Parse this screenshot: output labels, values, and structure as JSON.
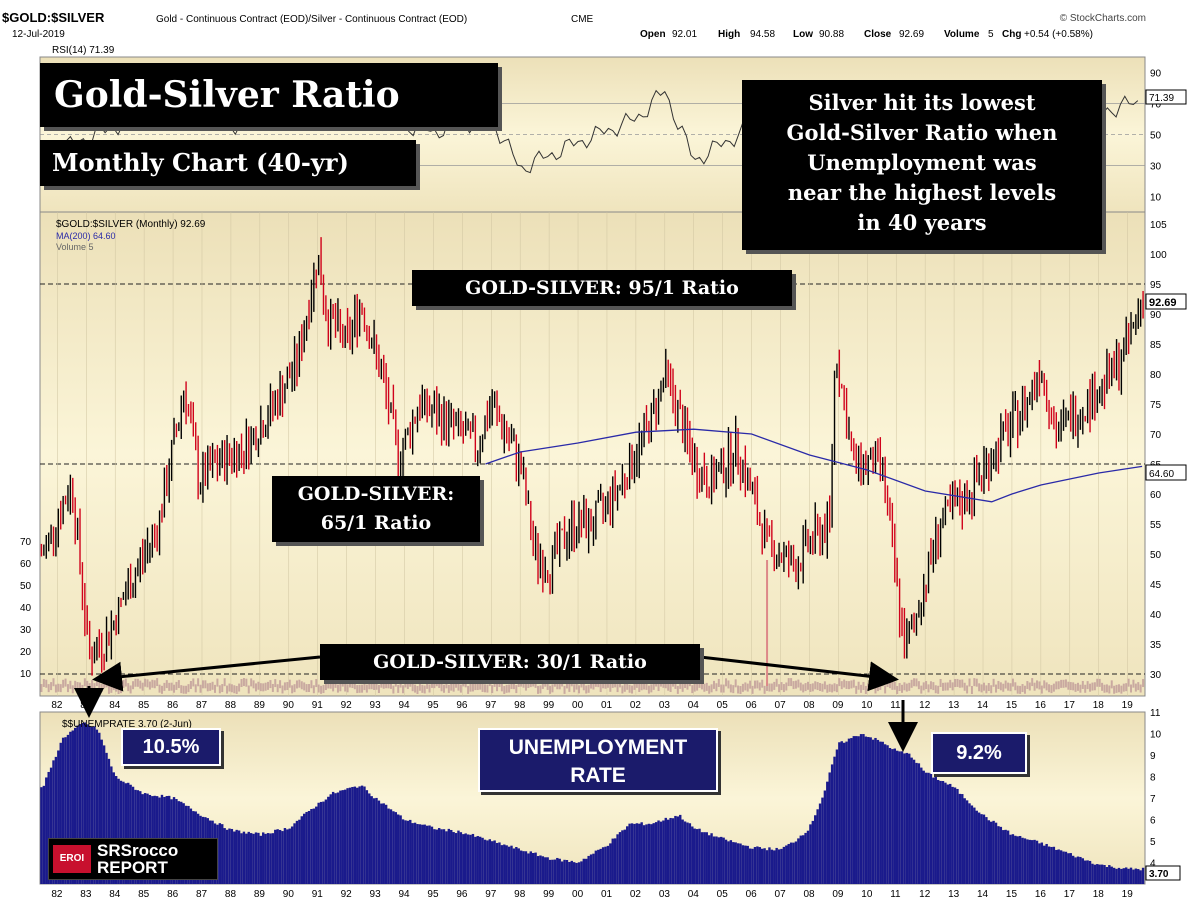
{
  "header": {
    "symbol": "$GOLD:$SILVER",
    "description": "Gold - Continuous Contract (EOD)/Silver - Continuous Contract (EOD)",
    "exchange": "CME",
    "source": "© StockCharts.com",
    "date": "12-Jul-2019",
    "ohlc": {
      "open_label": "Open",
      "open": "92.01",
      "high_label": "High",
      "high": "94.58",
      "low_label": "Low",
      "low": "90.88",
      "close_label": "Close",
      "close": "92.69",
      "volume_label": "Volume",
      "volume": "5",
      "chg_label": "Chg",
      "chg": "+0.54 (+0.58%)"
    }
  },
  "annotations": {
    "title": "Gold-Silver Ratio",
    "subtitle": "Monthly Chart (40-yr)",
    "note_lines": [
      "Silver hit its lowest",
      "Gold-Silver Ratio when",
      "Unemployment was",
      "near the highest levels",
      "in 40 years"
    ],
    "ratio95": "GOLD-SILVER: 95/1 Ratio",
    "ratio65_line1": "GOLD-SILVER:",
    "ratio65_line2": "65/1 Ratio",
    "ratio30": "GOLD-SILVER: 30/1 Ratio",
    "unemp_peak1": "10.5%",
    "unemp_peak2": "9.2%",
    "unemp_label_line1": "UNEMPLOYMENT",
    "unemp_label_line2": "RATE"
  },
  "logo": {
    "badge": "EROI",
    "line1": "SRSrocco",
    "line2": "REPORT"
  },
  "colors": {
    "background": "#f6efc4",
    "up": "#000000",
    "down": "#d0021b",
    "ma": "#2a2aa8",
    "unemployment": "#1a1a8c",
    "callout": "#000000",
    "callout_blue": "#1b1b6b"
  },
  "chart_data": [
    {
      "type": "line",
      "panel": "RSI",
      "title": "RSI(14) 71.39",
      "last_value": "71.39",
      "ylim": [
        0,
        100
      ],
      "y_ticks": [
        "90",
        "70",
        "50",
        "30",
        "10"
      ],
      "x": [
        1982,
        1984,
        1986,
        1988,
        1990,
        1991,
        1993,
        1995,
        1997,
        1998,
        2000,
        2002,
        2003,
        2004,
        2006,
        2008,
        2008.8,
        2010,
        2011.3,
        2013,
        2015,
        2017,
        2019.5
      ],
      "values": [
        40,
        55,
        75,
        55,
        70,
        85,
        60,
        52,
        60,
        28,
        45,
        60,
        78,
        33,
        55,
        40,
        80,
        60,
        35,
        55,
        65,
        60,
        71.39
      ]
    },
    {
      "type": "bar",
      "panel": "price",
      "title": "$GOLD:$SILVER (Monthly) 92.69",
      "legend": [
        "$GOLD:$SILVER (Monthly) 92.69",
        "MA(200) 64.60",
        "Volume 5"
      ],
      "last_value": "92.69",
      "ma_last": "64.60",
      "ylim": [
        28,
        107
      ],
      "y_ticks_right": [
        "105",
        "100",
        "95",
        "90",
        "85",
        "80",
        "75",
        "70",
        "65",
        "60",
        "55",
        "50",
        "45",
        "40",
        "35",
        "30"
      ],
      "volume_ticks_left": [
        "70",
        "60",
        "50",
        "40",
        "30",
        "20",
        "10"
      ],
      "reference_lines": [
        95,
        65,
        30
      ],
      "x_ticks": [
        "82",
        "83",
        "84",
        "85",
        "86",
        "87",
        "88",
        "89",
        "90",
        "91",
        "92",
        "93",
        "94",
        "95",
        "96",
        "97",
        "98",
        "99",
        "00",
        "01",
        "02",
        "03",
        "04",
        "05",
        "06",
        "07",
        "08",
        "09",
        "10",
        "11",
        "12",
        "13",
        "14",
        "15",
        "16",
        "17",
        "18",
        "19"
      ],
      "x": [
        1981.5,
        1982.5,
        1983.1,
        1983.7,
        1984.5,
        1985.5,
        1986.4,
        1986.9,
        1987.5,
        1988.5,
        1989.5,
        1990.3,
        1991.0,
        1991.3,
        1992.0,
        1992.5,
        1993.3,
        1993.8,
        1994.5,
        1995.5,
        1996.5,
        1997.0,
        1997.5,
        1998.0,
        1998.5,
        1999.0,
        1999.8,
        2000.5,
        2001.5,
        2002.5,
        2003.0,
        2003.5,
        2004.0,
        2004.6,
        2005.5,
        2006.0,
        2006.5,
        2007.5,
        2008.0,
        2008.7,
        2008.9,
        2009.5,
        2010.5,
        2011.0,
        2011.3,
        2011.7,
        2012.5,
        2013.5,
        2014.5,
        2015.5,
        2016.0,
        2016.5,
        2017.5,
        2018.5,
        2019.0,
        2019.5
      ],
      "values": [
        50,
        62,
        33,
        36,
        45,
        55,
        78,
        62,
        65,
        68,
        75,
        82,
        100,
        90,
        85,
        92,
        78,
        66,
        75,
        72,
        68,
        75,
        70,
        65,
        50,
        48,
        55,
        55,
        62,
        72,
        80,
        73,
        65,
        62,
        68,
        60,
        52,
        48,
        52,
        55,
        85,
        65,
        65,
        45,
        34,
        40,
        55,
        60,
        68,
        75,
        82,
        70,
        75,
        80,
        85,
        92.69
      ],
      "ma200": {
        "x": [
          1996.8,
          1998,
          2000,
          2002,
          2004,
          2006,
          2008,
          2010,
          2012,
          2014.3,
          2015,
          2016,
          2017,
          2018,
          2019.5
        ],
        "values": [
          65,
          67,
          68.5,
          70.3,
          70.8,
          70,
          66.5,
          64,
          60.5,
          58.7,
          60,
          61.5,
          62.5,
          63.5,
          64.6
        ]
      }
    },
    {
      "type": "area",
      "panel": "unemployment",
      "title": "$$UNEMPRATE 3.70 (2-Jun)",
      "last_value": "3.70",
      "ylim": [
        3,
        11
      ],
      "y_ticks": [
        "11",
        "10",
        "9",
        "8",
        "7",
        "6",
        "5",
        "4"
      ],
      "x_ticks": [
        "82",
        "83",
        "84",
        "85",
        "86",
        "87",
        "88",
        "89",
        "90",
        "91",
        "92",
        "93",
        "94",
        "95",
        "96",
        "97",
        "98",
        "99",
        "00",
        "01",
        "02",
        "03",
        "04",
        "05",
        "06",
        "07",
        "08",
        "09",
        "10",
        "11",
        "12",
        "13",
        "14",
        "15",
        "16",
        "17",
        "18",
        "19"
      ],
      "x": [
        1981.5,
        1982.2,
        1982.9,
        1983.4,
        1984,
        1985,
        1986,
        1987,
        1988,
        1989,
        1990,
        1990.8,
        1991.5,
        1992.5,
        1993,
        1994,
        1995,
        1996,
        1997,
        1998,
        1999,
        2000,
        2001,
        2001.8,
        2002.5,
        2003.5,
        2004,
        2005,
        2006,
        2007,
        2007.5,
        2008,
        2008.5,
        2009,
        2009.8,
        2010.5,
        2011,
        2011.5,
        2012,
        2013,
        2014,
        2015,
        2016,
        2017,
        2018,
        2019,
        2019.5
      ],
      "values": [
        7.5,
        9.8,
        10.5,
        10.2,
        8,
        7.2,
        7,
        6.2,
        5.5,
        5.3,
        5.6,
        6.5,
        7.2,
        7.6,
        7,
        6,
        5.6,
        5.4,
        5,
        4.6,
        4.2,
        4,
        4.8,
        5.8,
        5.8,
        6.2,
        5.6,
        5.1,
        4.7,
        4.6,
        5,
        5.6,
        7.2,
        9.5,
        10,
        9.6,
        9.2,
        9,
        8.2,
        7.5,
        6.2,
        5.3,
        4.9,
        4.4,
        3.9,
        3.7,
        3.7
      ]
    }
  ]
}
